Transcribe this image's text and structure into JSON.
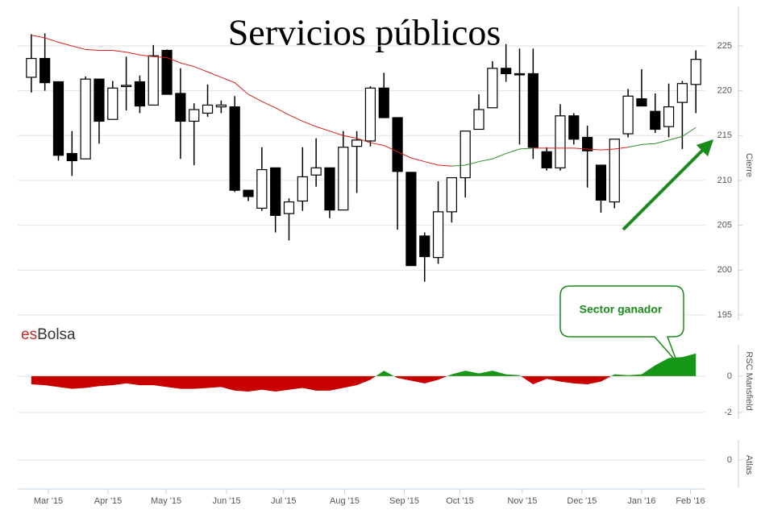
{
  "chart_data": [
    {
      "type": "candlestick",
      "title": "Servicios públicos",
      "y_label": "Cierre",
      "brand": [
        "es",
        "Bolsa"
      ],
      "brand_colors": [
        "#c0282b",
        "#333333"
      ],
      "callout": "Sector ganador",
      "callout_color": "#1a8a1a",
      "arrow_color": "#1a8a1a",
      "open": [
        221.5,
        223.6,
        221.0,
        213.0,
        212.4,
        221.3,
        216.8,
        220.5,
        221.0,
        218.4,
        224.5,
        219.7,
        216.6,
        217.5,
        218.2,
        218.2,
        208.9,
        206.9,
        211.4,
        206.3,
        207.7,
        210.6,
        211.4,
        206.7,
        213.8,
        214.4,
        220.3,
        217.0,
        210.9,
        203.8,
        201.4,
        206.5,
        210.3,
        215.7,
        218.1,
        222.5,
        221.9,
        221.9,
        213.2,
        211.4,
        217.2,
        214.8,
        211.7,
        207.6,
        215.2,
        219.1,
        217.7,
        216.0,
        218.7,
        220.7
      ],
      "high": [
        226.3,
        226.4,
        221.0,
        215.5,
        221.6,
        221.3,
        221.1,
        223.8,
        221.7,
        225.1,
        224.6,
        222.5,
        218.6,
        220.7,
        218.9,
        219.4,
        208.9,
        213.7,
        211.4,
        208.0,
        213.7,
        214.7,
        211.4,
        215.5,
        215.5,
        220.5,
        222.0,
        217.0,
        210.9,
        204.2,
        209.9,
        210.3,
        215.5,
        219.6,
        223.3,
        225.2,
        224.7,
        224.7,
        213.7,
        218.5,
        217.5,
        216.1,
        211.7,
        214.6,
        220.2,
        222.4,
        219.7,
        220.8,
        221.1,
        224.5
      ],
      "low": [
        219.8,
        220.0,
        212.2,
        210.5,
        212.4,
        214.1,
        216.8,
        217.8,
        217.5,
        218.4,
        219.6,
        212.4,
        211.7,
        217.1,
        217.5,
        208.7,
        207.7,
        206.6,
        204.2,
        203.3,
        206.6,
        209.3,
        205.8,
        206.7,
        208.6,
        213.8,
        217.0,
        204.5,
        200.5,
        198.7,
        200.7,
        205.3,
        208.1,
        215.7,
        218.1,
        221.0,
        214.0,
        212.4,
        211.1,
        211.1,
        214.0,
        209.2,
        206.4,
        206.9,
        214.8,
        218.3,
        215.3,
        214.8,
        213.5,
        217.5
      ],
      "close": [
        223.6,
        220.9,
        212.8,
        212.2,
        221.3,
        216.6,
        220.3,
        220.6,
        218.3,
        223.9,
        219.6,
        216.6,
        217.9,
        218.4,
        218.4,
        208.9,
        208.2,
        211.2,
        206.1,
        207.6,
        210.4,
        211.4,
        206.7,
        213.7,
        214.5,
        220.3,
        217.0,
        211.0,
        200.5,
        201.5,
        206.5,
        210.3,
        215.5,
        217.9,
        222.5,
        221.9,
        221.8,
        213.7,
        211.4,
        217.2,
        214.6,
        213.3,
        207.8,
        214.6,
        219.4,
        218.3,
        215.7,
        218.2,
        220.8,
        223.5
      ],
      "up_color": "#ffffff",
      "down_color": "#000000",
      "ma": {
        "values": [
          226.2,
          225.9,
          225.4,
          225.0,
          224.6,
          224.5,
          224.5,
          224.3,
          224.0,
          223.8,
          223.7,
          223.1,
          222.7,
          222.1,
          221.5,
          220.9,
          219.6,
          218.8,
          218.1,
          217.3,
          216.6,
          216.0,
          215.5,
          215.0,
          214.7,
          214.2,
          213.9,
          213.2,
          212.5,
          212.1,
          211.7,
          211.6,
          211.7,
          212.1,
          212.4,
          213.0,
          213.5,
          213.6,
          213.6,
          213.6,
          213.6,
          213.5,
          213.4,
          213.5,
          213.7,
          214.0,
          214.1,
          214.5,
          214.9,
          215.9
        ],
        "colors": [
          "#d62020",
          "#d62020",
          "#d62020",
          "#d62020",
          "#d62020",
          "#d62020",
          "#d62020",
          "#d62020",
          "#d62020",
          "#d62020",
          "#d62020",
          "#d62020",
          "#d62020",
          "#d62020",
          "#d62020",
          "#d62020",
          "#d62020",
          "#d62020",
          "#d62020",
          "#d62020",
          "#d62020",
          "#d62020",
          "#d62020",
          "#d62020",
          "#d62020",
          "#d62020",
          "#d62020",
          "#d62020",
          "#d62020",
          "#d62020",
          "#d62020",
          "#d62020",
          "#2e8b2e",
          "#2e8b2e",
          "#2e8b2e",
          "#2e8b2e",
          "#2e8b2e",
          "#2e8b2e",
          "#d62020",
          "#d62020",
          "#d62020",
          "#d62020",
          "#d62020",
          "#d62020",
          "#d62020",
          "#2e8b2e",
          "#2e8b2e",
          "#2e8b2e",
          "#2e8b2e",
          "#2e8b2e"
        ]
      },
      "xlim": [
        -1,
        49.7
      ],
      "xticks": [
        {
          "value": 1.26,
          "label": "Mar '15"
        },
        {
          "value": 5.66,
          "label": "Apr '15"
        },
        {
          "value": 9.94,
          "label": "May '15"
        },
        {
          "value": 14.4,
          "label": "Jun '15"
        },
        {
          "value": 18.6,
          "label": "Jul '15"
        },
        {
          "value": 23.1,
          "label": "Aug '15"
        },
        {
          "value": 27.5,
          "label": "Sep '15"
        },
        {
          "value": 31.6,
          "label": "Oct '15"
        },
        {
          "value": 36.2,
          "label": "Nov '15"
        },
        {
          "value": 40.6,
          "label": "Dec '15"
        },
        {
          "value": 45.0,
          "label": "Jan '16"
        },
        {
          "value": 48.6,
          "label": "Feb '16"
        }
      ],
      "ylim": [
        194.36,
        229.67
      ],
      "yticks": [
        195,
        200,
        205,
        210,
        215,
        220,
        225
      ],
      "grid": true
    },
    {
      "type": "area",
      "y_label": "RSC Mansfield",
      "values": [
        -0.45,
        -0.5,
        -0.6,
        -0.7,
        -0.65,
        -0.55,
        -0.5,
        -0.4,
        -0.5,
        -0.5,
        -0.6,
        -0.7,
        -0.7,
        -0.65,
        -0.6,
        -0.8,
        -0.85,
        -0.75,
        -0.85,
        -0.75,
        -0.65,
        -0.8,
        -0.8,
        -0.65,
        -0.5,
        -0.2,
        0.3,
        -0.1,
        -0.25,
        -0.4,
        -0.2,
        0.1,
        0.3,
        0.15,
        0.3,
        0.1,
        0.05,
        -0.45,
        -0.15,
        -0.3,
        -0.4,
        -0.45,
        -0.3,
        0.1,
        0.05,
        0.1,
        0.6,
        1.0,
        1.05,
        1.25
      ],
      "pos_color": "#169616",
      "neg_color": "#c80000",
      "ylim": [
        -2.36,
        1.73
      ],
      "yticks": [
        -2,
        0
      ],
      "grid": true
    },
    {
      "type": "empty",
      "y_label": "Atlas",
      "ylim": [
        -1,
        1
      ],
      "yticks": [
        0
      ],
      "grid": true
    }
  ]
}
